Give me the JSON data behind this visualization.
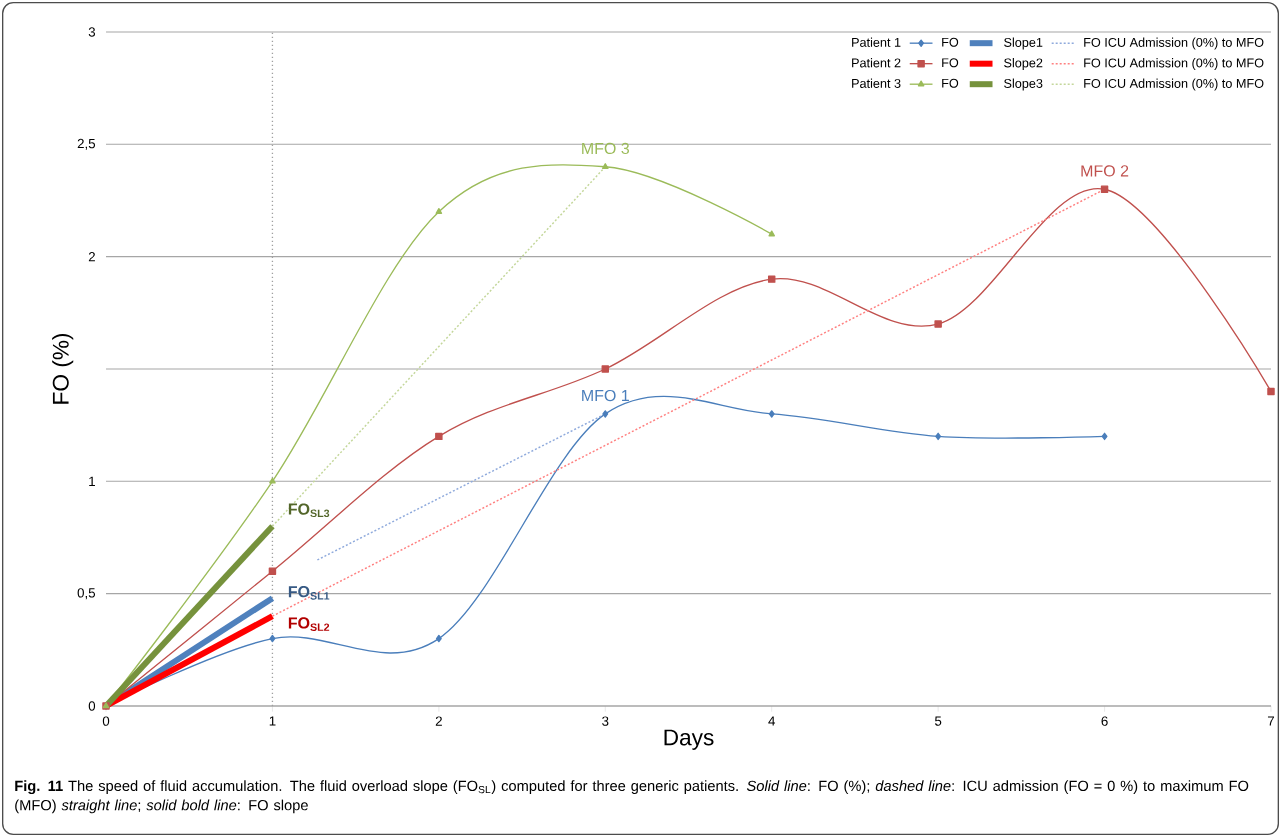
{
  "chart_data": {
    "type": "line",
    "xlabel": "Days",
    "ylabel": "FO (%)",
    "xlim": [
      0,
      7
    ],
    "xticks": [
      0,
      1,
      2,
      3,
      4,
      5,
      6,
      7
    ],
    "ylim": [
      0,
      3
    ],
    "yticks": [
      0,
      {
        "value": 0.5,
        "label": "0,5"
      },
      1,
      {
        "value": 1.5,
        "label": null
      },
      2,
      {
        "value": 2.5,
        "label": "2,5"
      },
      3
    ],
    "grid": "y",
    "legend": "top right",
    "x": [
      0,
      1,
      2,
      3,
      4,
      5,
      6,
      7
    ],
    "series": [
      {
        "name": "FO",
        "color": "#4a7ebb",
        "marker": "diamond",
        "line_style": "solid",
        "values": [
          0,
          0.3,
          0.3,
          1.3,
          1.3,
          1.2,
          1.2,
          null
        ]
      },
      {
        "name": "Slope1",
        "color": "#4f81bd",
        "marker": "none",
        "line_style": "solid",
        "x": [
          0,
          1
        ],
        "values": [
          0,
          0.48
        ]
      },
      {
        "name": "FO ICU Admission (0%) to MFO",
        "color": "#8faadc",
        "marker": "none",
        "line_style": "dotted",
        "x": [
          1.27,
          3
        ],
        "values": [
          0.65,
          1.3
        ]
      },
      {
        "name": "FO",
        "color": "#c0504d",
        "marker": "square",
        "line_style": "solid",
        "values": [
          0,
          0.6,
          1.2,
          1.5,
          1.9,
          1.7,
          2.3,
          1.4
        ]
      },
      {
        "name": "Slope2",
        "color": "#ff0000",
        "marker": "none",
        "line_style": "solid",
        "x": [
          0,
          1
        ],
        "values": [
          0,
          0.4
        ]
      },
      {
        "name": "FO ICU Admission (0%) to MFO",
        "color": "#ff8080",
        "marker": "none",
        "line_style": "dotted",
        "x": [
          1,
          6
        ],
        "values": [
          0.4,
          2.3
        ]
      },
      {
        "name": "FO",
        "color": "#9bbb59",
        "marker": "triangle",
        "line_style": "solid",
        "values": [
          0,
          1.0,
          2.2,
          2.4,
          2.1,
          null,
          null,
          null
        ]
      },
      {
        "name": "Slope3",
        "color": "#76923c",
        "marker": "none",
        "line_style": "solid",
        "x": [
          0,
          1
        ],
        "values": [
          0,
          0.8
        ]
      },
      {
        "name": "FO ICU Admission (0%) to MFO",
        "color": "#c4d79b",
        "marker": "none",
        "line_style": "dotted",
        "x": [
          1,
          3
        ],
        "values": [
          0.8,
          2.4
        ]
      }
    ],
    "ref_lines": [
      {
        "axis": "x",
        "value": 1,
        "color": "#a0a0a0",
        "line_style": "dotted"
      }
    ],
    "annotations": [
      {
        "text": "MFO 1",
        "x": 3,
        "y": 1.3
      },
      {
        "text": "MFO 2",
        "x": 6,
        "y": 2.3
      },
      {
        "text": "MFO 3",
        "x": 3,
        "y": 2.4
      },
      {
        "text": "FO$_{SL1}$",
        "x": 1,
        "y": 0.48
      },
      {
        "text": "FO$_{SL2}$",
        "x": 1,
        "y": 0.4
      },
      {
        "text": "FO$_{SL3}$",
        "x": 1,
        "y": 0.8
      },
      "Patient 1",
      "Patient 2",
      "Patient 3",
      "**Fig. 11** The speed of fluid accumulation. The fluid overload slope (FO$_{SL}$) computed for three generic patients. *Solid line*: FO (%); *dashed line*: ICU admission (FO = 0 %) to maximum FO (MFO) *straight line*; *solid bold line*: FO slope"
    ]
  }
}
